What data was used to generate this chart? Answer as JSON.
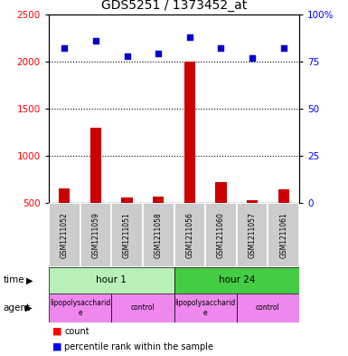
{
  "title": "GDS5251 / 1373452_at",
  "samples": [
    "GSM1211052",
    "GSM1211059",
    "GSM1211051",
    "GSM1211058",
    "GSM1211056",
    "GSM1211060",
    "GSM1211057",
    "GSM1211061"
  ],
  "counts": [
    650,
    1300,
    560,
    570,
    2000,
    720,
    530,
    640
  ],
  "percentiles": [
    82,
    86,
    78,
    79,
    88,
    82,
    77,
    82
  ],
  "ylim_left": [
    500,
    2500
  ],
  "ylim_right": [
    0,
    100
  ],
  "yticks_left": [
    500,
    1000,
    1500,
    2000,
    2500
  ],
  "yticks_right": [
    0,
    25,
    50,
    75,
    100
  ],
  "bar_color": "#cc0000",
  "dot_color": "#0000cc",
  "time_labels": [
    "hour 1",
    "hour 24"
  ],
  "time_color_1": "#b8f0b8",
  "time_color_2": "#44cc44",
  "agent_color": "#ee88ee",
  "sample_bg_color": "#cccccc",
  "title_fontsize": 10,
  "tick_fontsize": 7.5,
  "legend_fontsize": 7
}
